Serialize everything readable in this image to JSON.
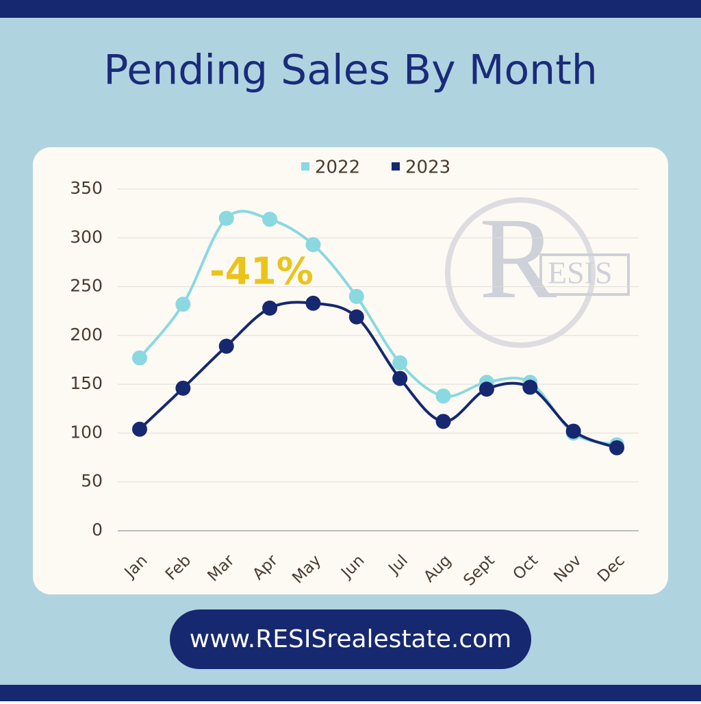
{
  "chart_data": {
    "type": "line",
    "title": "Pending Sales By Month",
    "categories": [
      "Jan",
      "Feb",
      "Mar",
      "Apr",
      "May",
      "Jun",
      "Jul",
      "Aug",
      "Sept",
      "Oct",
      "Nov",
      "Dec"
    ],
    "series": [
      {
        "name": "2022",
        "color": "#8ad8e0",
        "values": [
          177,
          232,
          320,
          319,
          293,
          240,
          172,
          138,
          152,
          152,
          100,
          88
        ]
      },
      {
        "name": "2023",
        "color": "#16286f",
        "values": [
          104,
          146,
          189,
          228,
          233,
          219,
          156,
          112,
          145,
          147,
          102,
          85
        ]
      }
    ],
    "ylim": [
      0,
      350
    ],
    "yticks": [
      0,
      50,
      100,
      150,
      200,
      250,
      300,
      350
    ],
    "grid": true,
    "smooth": true,
    "legend": "top",
    "annotation": "-41%"
  },
  "watermark": {
    "initial": "R",
    "rest": "ESIS"
  },
  "footer": "www.RESISrealestate.com"
}
